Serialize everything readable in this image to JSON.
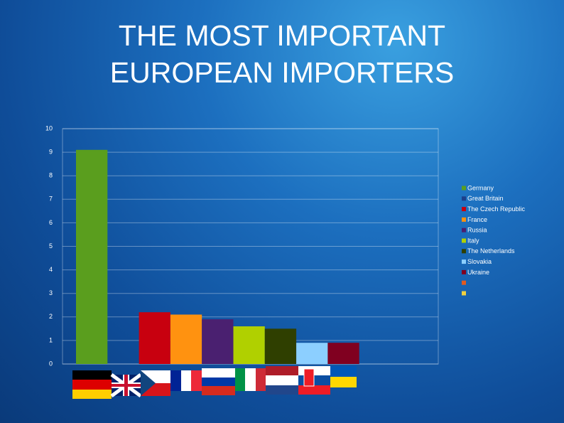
{
  "chart_data": {
    "type": "bar",
    "title": "THE MOST IMPORTANT EUROPEAN IMPORTERS",
    "categories": [
      "Germany",
      "Great Britain",
      "The Czech Republic",
      "France",
      "Russia",
      "Italy",
      "The Netherlands",
      "Slovakia",
      "Ukraine",
      null,
      null
    ],
    "values": [
      9.1,
      null,
      2.2,
      2.1,
      1.9,
      1.6,
      1.5,
      0.9,
      0.9,
      null,
      null
    ],
    "colors": [
      "#5a9e1e",
      "#1d3f8a",
      "#c8000f",
      "#ff9210",
      "#4a2070",
      "#b0d000",
      "#2f3f00",
      "#8ccfff",
      "#800020",
      "#e05a20",
      "#f0d040"
    ],
    "ylim": [
      0,
      10
    ],
    "yticks": [
      0,
      1,
      2,
      3,
      4,
      5,
      6,
      7,
      8,
      9,
      10
    ],
    "grid": true,
    "legend": "right"
  }
}
